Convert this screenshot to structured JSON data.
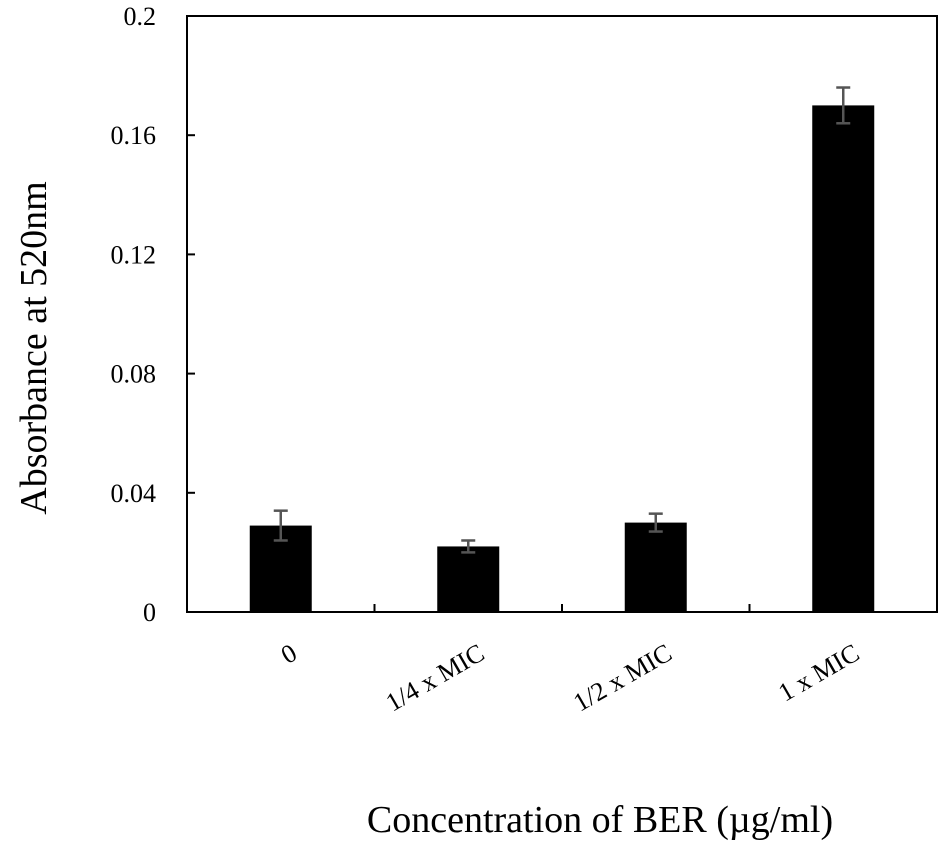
{
  "chart_data": {
    "type": "bar",
    "xlabel": "Concentration of BER (µg/ml)",
    "ylabel": "Absorbance at 520nm",
    "categories": [
      "0",
      "1/4 x MIC",
      "1/2 x MIC",
      "1 x MIC"
    ],
    "values": [
      0.029,
      0.022,
      0.03,
      0.17
    ],
    "errors": [
      0.005,
      0.002,
      0.003,
      0.006
    ],
    "ylim": [
      0,
      0.2
    ],
    "yticks": [
      "0",
      "0.04",
      "0.08",
      "0.12",
      "0.16",
      "0.2"
    ],
    "grid": false,
    "legend": "none",
    "colors": {
      "bar": "#000000",
      "error_bar": "#555555",
      "axis": "#000000"
    }
  }
}
